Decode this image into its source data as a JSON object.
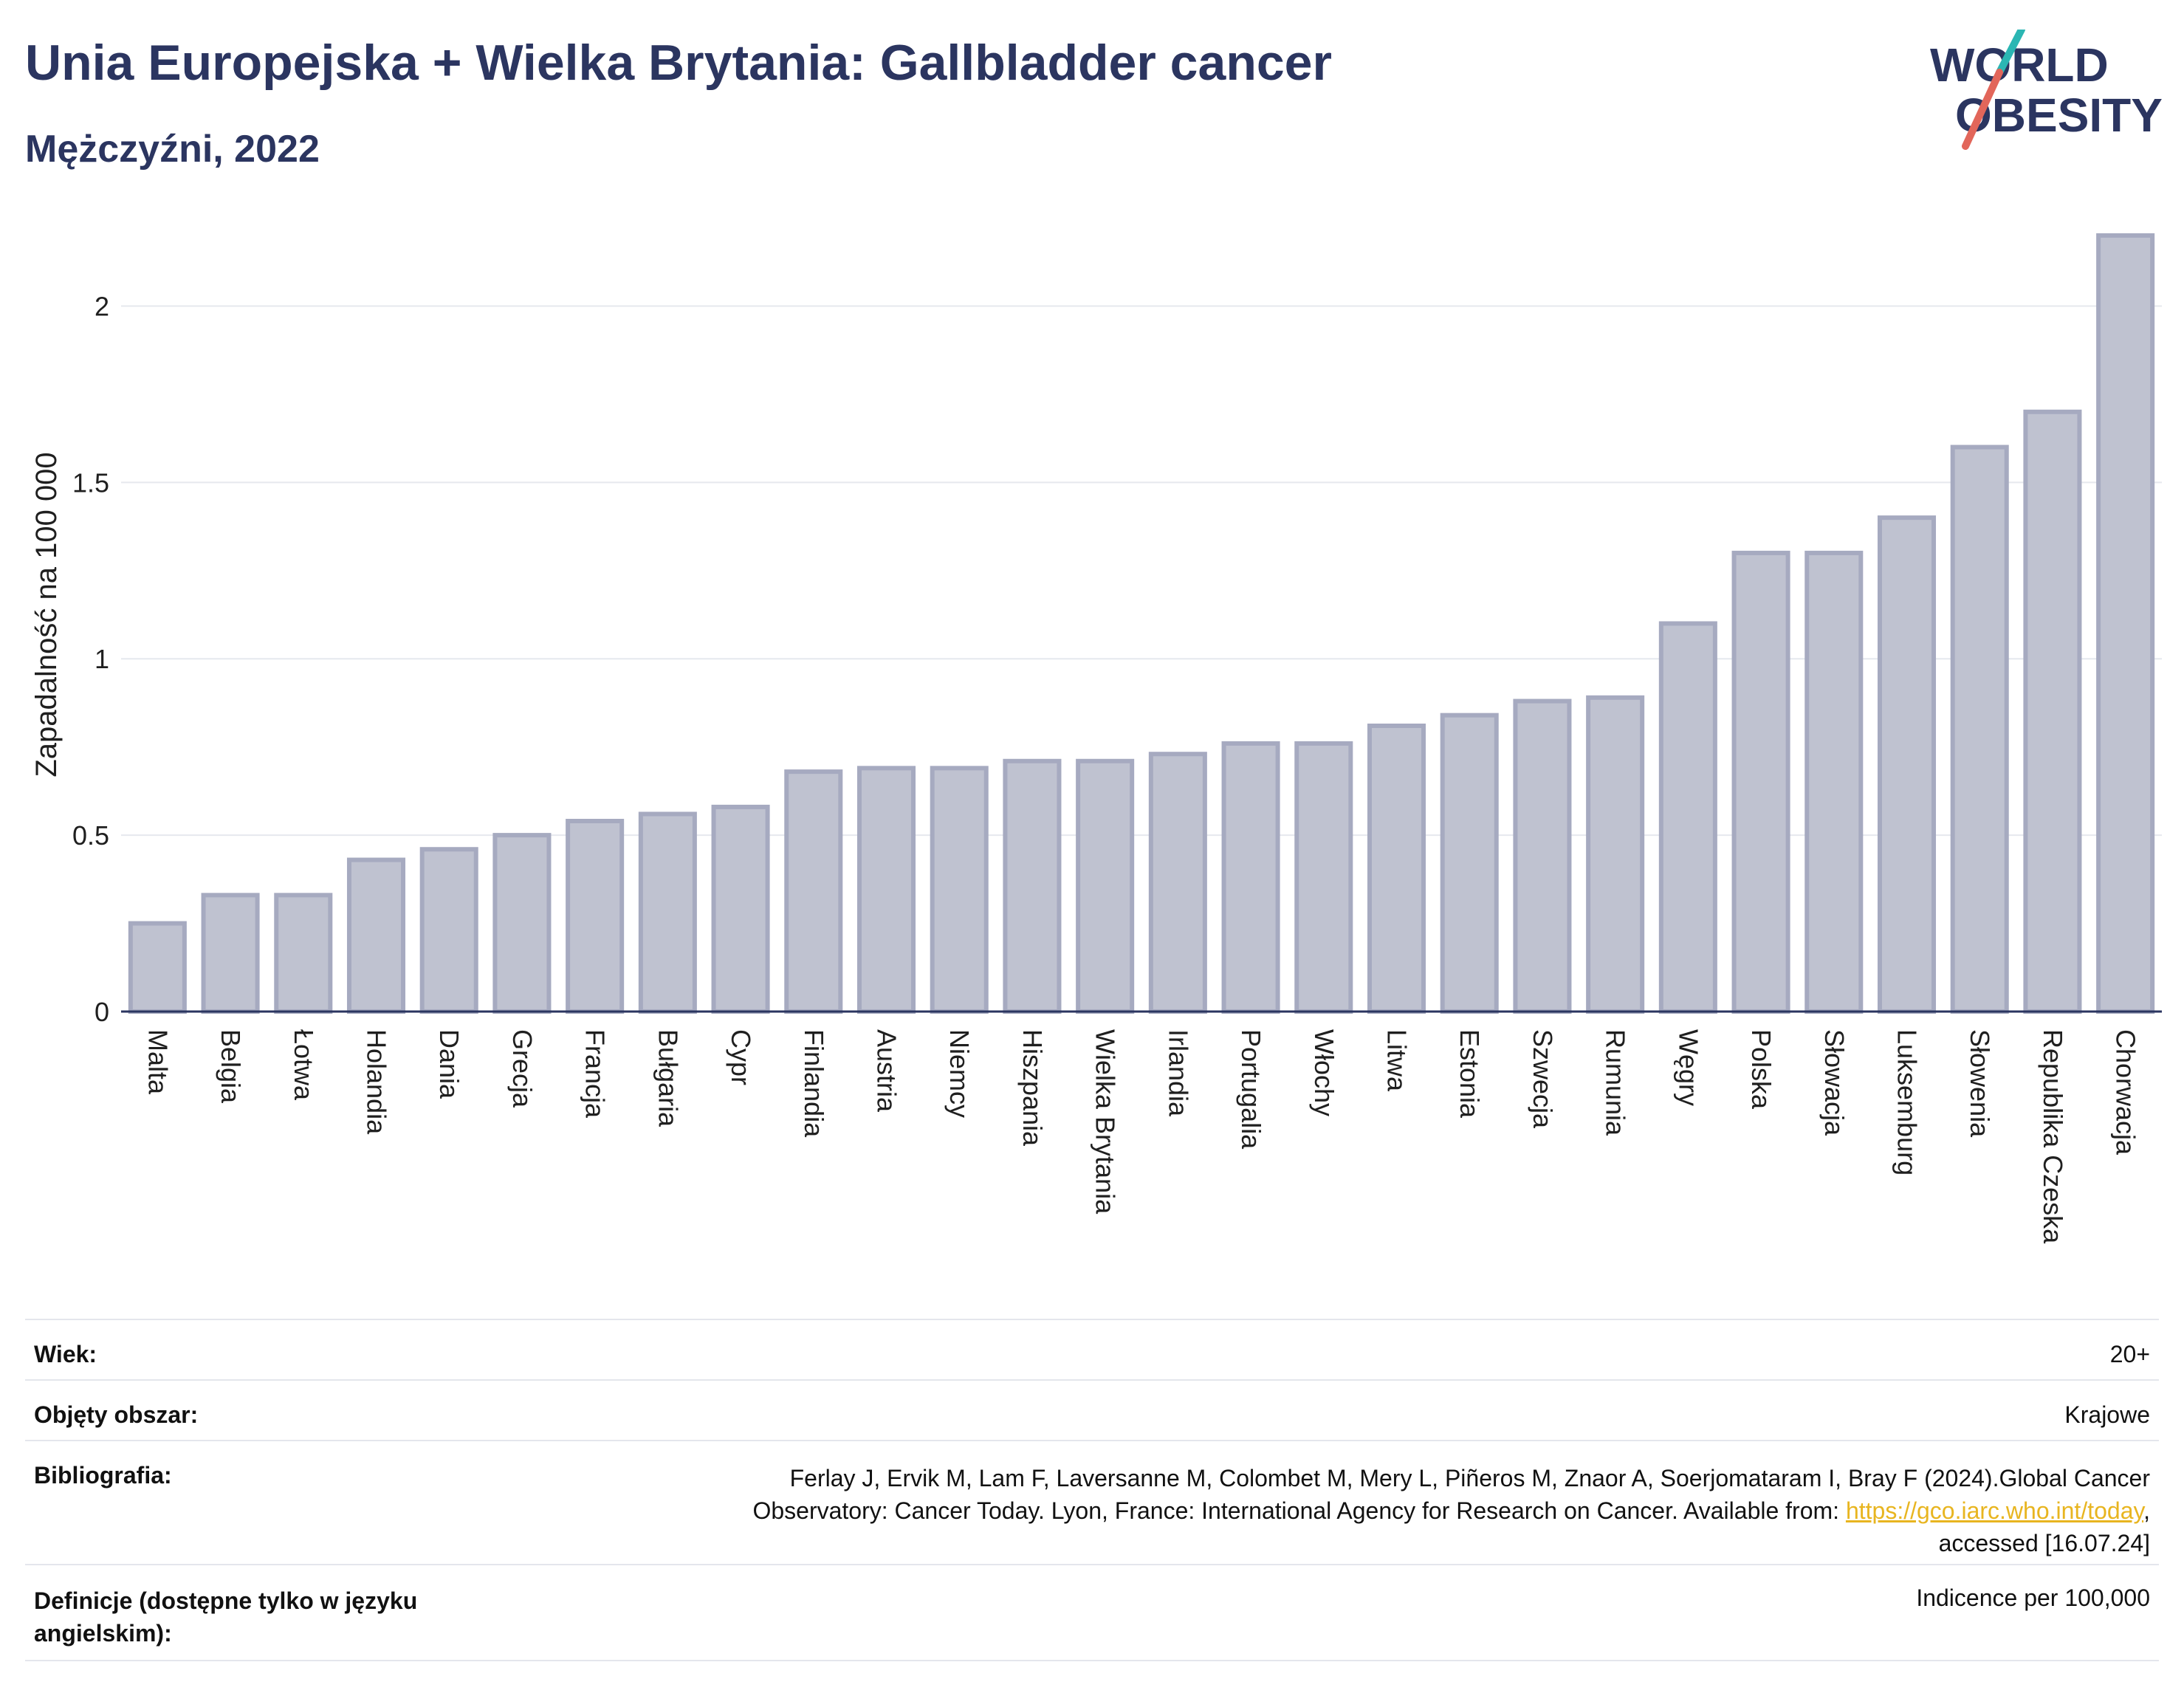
{
  "header": {
    "title": "Unia Europejska + Wielka Brytania: Gallbladder cancer",
    "subtitle": "Mężczyźni, 2022"
  },
  "logo": {
    "line1": "WORLD",
    "line2": "OBESITY",
    "icon": "world-obesity-logo"
  },
  "chart_data": {
    "type": "bar",
    "ylabel": "Zapadalność na 100 000",
    "ylim": [
      0,
      2.25
    ],
    "yticks": [
      0,
      0.5,
      1,
      1.5,
      2
    ],
    "ytick_labels": [
      "0",
      "0.5",
      "1",
      "1.5",
      "2"
    ],
    "grid": true,
    "categories": [
      "Malta",
      "Belgia",
      "Łotwa",
      "Holandia",
      "Dania",
      "Grecja",
      "Francja",
      "Bułgaria",
      "Cypr",
      "Finlandia",
      "Austria",
      "Niemcy",
      "Hiszpania",
      "Wielka Brytania",
      "Irlandia",
      "Portugalia",
      "Włochy",
      "Litwa",
      "Estonia",
      "Szwecja",
      "Rumunia",
      "Węgry",
      "Polska",
      "Słowacja",
      "Luksemburg",
      "Słowenia",
      "Republika Czeska",
      "Chorwacja"
    ],
    "values": [
      0.25,
      0.33,
      0.33,
      0.43,
      0.46,
      0.5,
      0.54,
      0.56,
      0.58,
      0.68,
      0.69,
      0.69,
      0.71,
      0.71,
      0.73,
      0.76,
      0.76,
      0.81,
      0.84,
      0.88,
      0.89,
      1.1,
      1.3,
      1.3,
      1.4,
      1.6,
      1.7,
      2.2
    ],
    "colors": {
      "bar_fill": "#bfc2d0",
      "bar_stroke": "#a6aac0",
      "axis": "#2b3560",
      "grid": "#e6e8ee"
    }
  },
  "meta": {
    "age_label": "Wiek:",
    "age_value": "20+",
    "coverage_label": "Objęty obszar:",
    "coverage_value": "Krajowe",
    "bib_label": "Bibliografia:",
    "bib_line1": "Ferlay J, Ervik M, Lam F, Laversanne M, Colombet M, Mery L, Piñeros M, Znaor A, Soerjomataram I, Bray F (2024).Global Cancer",
    "bib_line2_pre": "Observatory: Cancer Today. Lyon, France: International Agency for Research on Cancer. Available from: ",
    "bib_link": "https://gco.iarc.who.int/today",
    "bib_line2_post": ",",
    "bib_line3": "accessed [16.07.24]",
    "def_label_line1": "Definicje (dostępne tylko w języku",
    "def_label_line2": "angielskim):",
    "def_value": "Indicence per 100,000"
  }
}
